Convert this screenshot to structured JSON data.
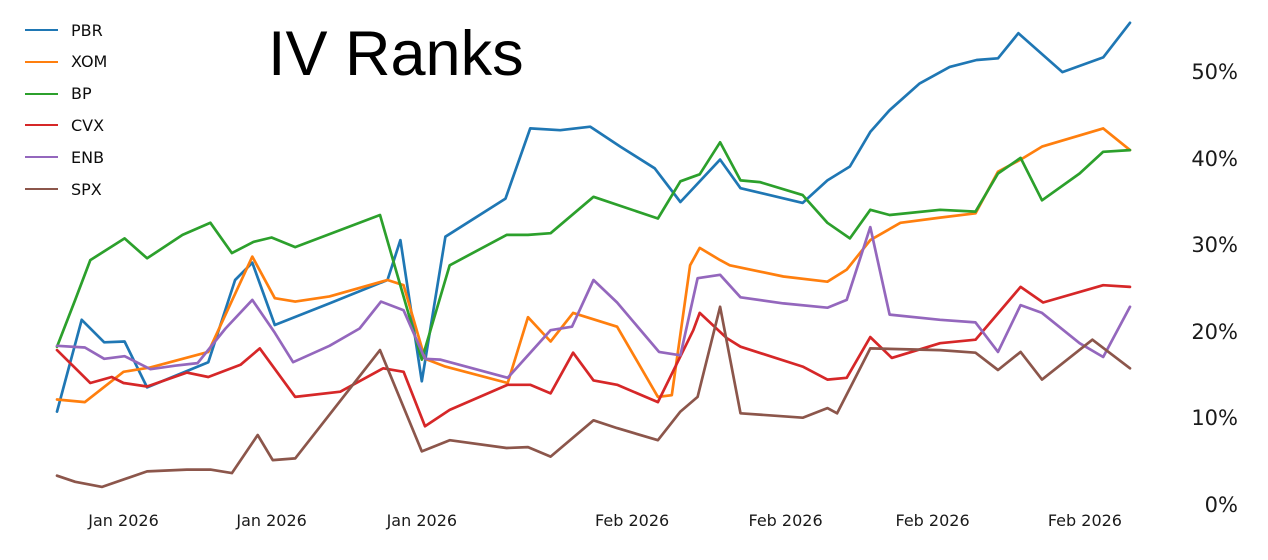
{
  "title": "IV Ranks",
  "text_color": "#1a1a1a",
  "background_color": "#ffffff",
  "chart_data": {
    "type": "line",
    "title": "IV Ranks",
    "grid": false,
    "legend_position": "top-left",
    "y_axis": {
      "side": "right",
      "unit": "%",
      "range": [
        0,
        57
      ],
      "ticks": [
        {
          "value": 0,
          "label": "0%"
        },
        {
          "value": 10,
          "label": "10%"
        },
        {
          "value": 20,
          "label": "20%"
        },
        {
          "value": 30,
          "label": "30%"
        },
        {
          "value": 40,
          "label": "40%"
        },
        {
          "value": 50,
          "label": "50%"
        }
      ]
    },
    "x_axis": {
      "kind": "date",
      "tick_labels": [
        {
          "label": "Jan 2026",
          "x_pct": 6.2
        },
        {
          "label": "Jan 2026",
          "x_pct": 20.0
        },
        {
          "label": "Jan 2026",
          "x_pct": 34.0
        },
        {
          "label": "Feb 2026",
          "x_pct": 53.6
        },
        {
          "label": "Feb 2026",
          "x_pct": 67.9
        },
        {
          "label": "Feb 2026",
          "x_pct": 81.6
        },
        {
          "label": "Feb 2026",
          "x_pct": 95.8
        }
      ]
    },
    "series": [
      {
        "name": "PBR",
        "color": "#1f77b4",
        "points": [
          [
            0,
            10.9
          ],
          [
            2.3,
            21.5
          ],
          [
            4.4,
            18.9
          ],
          [
            6.3,
            19.0
          ],
          [
            8.4,
            13.7
          ],
          [
            14.1,
            16.6
          ],
          [
            16.6,
            26.1
          ],
          [
            18.2,
            28.1
          ],
          [
            20.3,
            20.9
          ],
          [
            25.4,
            23.4
          ],
          [
            30.8,
            26.1
          ],
          [
            32.0,
            30.7
          ],
          [
            34.0,
            14.4
          ],
          [
            36.2,
            31.1
          ],
          [
            41.8,
            35.5
          ],
          [
            44.1,
            43.6
          ],
          [
            46.9,
            43.4
          ],
          [
            49.7,
            43.8
          ],
          [
            52.5,
            41.5
          ],
          [
            55.7,
            39.0
          ],
          [
            58.1,
            35.1
          ],
          [
            61.8,
            40.0
          ],
          [
            63.7,
            36.7
          ],
          [
            69.5,
            35.0
          ],
          [
            71.8,
            37.6
          ],
          [
            73.9,
            39.2
          ],
          [
            75.8,
            43.2
          ],
          [
            77.6,
            45.7
          ],
          [
            80.4,
            48.8
          ],
          [
            83.2,
            50.7
          ],
          [
            85.7,
            51.5
          ],
          [
            87.7,
            51.7
          ],
          [
            89.6,
            54.6
          ],
          [
            93.7,
            50.1
          ],
          [
            97.5,
            51.8
          ],
          [
            100,
            55.8
          ]
        ]
      },
      {
        "name": "XOM",
        "color": "#ff7f0e",
        "points": [
          [
            0,
            12.3
          ],
          [
            2.6,
            12.0
          ],
          [
            6.2,
            15.5
          ],
          [
            8.7,
            16.0
          ],
          [
            14.1,
            17.8
          ],
          [
            18.2,
            28.8
          ],
          [
            20.3,
            24.0
          ],
          [
            22.2,
            23.6
          ],
          [
            25.4,
            24.2
          ],
          [
            30.8,
            26.1
          ],
          [
            32.3,
            25.5
          ],
          [
            34.3,
            17.0
          ],
          [
            36.2,
            16.1
          ],
          [
            42.0,
            14.2
          ],
          [
            43.9,
            21.8
          ],
          [
            46.0,
            19.0
          ],
          [
            48.1,
            22.3
          ],
          [
            52.2,
            20.7
          ],
          [
            56.0,
            12.6
          ],
          [
            57.3,
            12.8
          ],
          [
            59.0,
            27.8
          ],
          [
            59.9,
            29.8
          ],
          [
            61.8,
            28.4
          ],
          [
            62.7,
            27.8
          ],
          [
            67.7,
            26.5
          ],
          [
            71.8,
            25.9
          ],
          [
            73.6,
            27.3
          ],
          [
            75.8,
            30.7
          ],
          [
            78.6,
            32.7
          ],
          [
            82.3,
            33.3
          ],
          [
            85.6,
            33.8
          ],
          [
            87.7,
            38.6
          ],
          [
            89.8,
            40.0
          ],
          [
            91.8,
            41.5
          ],
          [
            95.3,
            42.8
          ],
          [
            97.5,
            43.6
          ],
          [
            100,
            41.1
          ]
        ]
      },
      {
        "name": "BP",
        "color": "#2ca02c",
        "points": [
          [
            0,
            18.4
          ],
          [
            1.7,
            23.8
          ],
          [
            3.1,
            28.4
          ],
          [
            6.3,
            30.9
          ],
          [
            8.4,
            28.6
          ],
          [
            11.7,
            31.3
          ],
          [
            14.3,
            32.7
          ],
          [
            16.3,
            29.2
          ],
          [
            18.3,
            30.5
          ],
          [
            20.0,
            31.0
          ],
          [
            22.2,
            29.9
          ],
          [
            30.1,
            33.6
          ],
          [
            34.0,
            16.9
          ],
          [
            36.6,
            27.8
          ],
          [
            41.9,
            31.3
          ],
          [
            43.9,
            31.3
          ],
          [
            46.0,
            31.5
          ],
          [
            50.0,
            35.7
          ],
          [
            56.0,
            33.2
          ],
          [
            58.1,
            37.5
          ],
          [
            59.9,
            38.3
          ],
          [
            61.8,
            42.0
          ],
          [
            63.7,
            37.6
          ],
          [
            65.5,
            37.4
          ],
          [
            69.5,
            35.9
          ],
          [
            71.8,
            32.7
          ],
          [
            73.9,
            30.9
          ],
          [
            75.8,
            34.2
          ],
          [
            77.6,
            33.6
          ],
          [
            82.3,
            34.2
          ],
          [
            85.6,
            34.0
          ],
          [
            87.7,
            38.4
          ],
          [
            89.8,
            40.2
          ],
          [
            91.8,
            35.3
          ],
          [
            95.3,
            38.4
          ],
          [
            97.5,
            40.9
          ],
          [
            100,
            41.1
          ]
        ]
      },
      {
        "name": "CVX",
        "color": "#d62728",
        "points": [
          [
            0,
            18.0
          ],
          [
            3.1,
            14.2
          ],
          [
            5.1,
            14.9
          ],
          [
            6.2,
            14.2
          ],
          [
            8.4,
            13.8
          ],
          [
            12.1,
            15.4
          ],
          [
            14.1,
            14.9
          ],
          [
            17.1,
            16.3
          ],
          [
            18.9,
            18.2
          ],
          [
            22.2,
            12.6
          ],
          [
            26.4,
            13.2
          ],
          [
            30.4,
            15.9
          ],
          [
            32.3,
            15.5
          ],
          [
            34.3,
            9.2
          ],
          [
            36.6,
            11.1
          ],
          [
            42.0,
            14.0
          ],
          [
            44.1,
            14.0
          ],
          [
            46.0,
            13.0
          ],
          [
            48.1,
            17.7
          ],
          [
            50.0,
            14.5
          ],
          [
            52.2,
            14.0
          ],
          [
            56.0,
            12.0
          ],
          [
            59.3,
            20.3
          ],
          [
            59.9,
            22.3
          ],
          [
            62.4,
            19.4
          ],
          [
            63.7,
            18.4
          ],
          [
            69.5,
            16.1
          ],
          [
            71.8,
            14.6
          ],
          [
            73.6,
            14.8
          ],
          [
            75.8,
            19.5
          ],
          [
            77.8,
            17.1
          ],
          [
            82.3,
            18.8
          ],
          [
            85.6,
            19.2
          ],
          [
            89.8,
            25.3
          ],
          [
            91.9,
            23.5
          ],
          [
            97.5,
            25.5
          ],
          [
            100,
            25.3
          ]
        ]
      },
      {
        "name": "ENB",
        "color": "#9467bd",
        "points": [
          [
            0,
            18.5
          ],
          [
            2.6,
            18.3
          ],
          [
            4.4,
            17.0
          ],
          [
            6.3,
            17.3
          ],
          [
            8.7,
            15.8
          ],
          [
            11.0,
            16.2
          ],
          [
            13.1,
            16.5
          ],
          [
            15.7,
            20.5
          ],
          [
            18.2,
            23.8
          ],
          [
            20.3,
            20.0
          ],
          [
            22.0,
            16.6
          ],
          [
            25.4,
            18.5
          ],
          [
            28.2,
            20.5
          ],
          [
            30.2,
            23.6
          ],
          [
            32.3,
            22.6
          ],
          [
            34.3,
            17.0
          ],
          [
            35.7,
            16.9
          ],
          [
            42.0,
            14.8
          ],
          [
            46.0,
            20.3
          ],
          [
            48.0,
            20.7
          ],
          [
            50.0,
            26.1
          ],
          [
            52.2,
            23.5
          ],
          [
            56.1,
            17.8
          ],
          [
            58.1,
            17.4
          ],
          [
            59.7,
            26.3
          ],
          [
            61.8,
            26.7
          ],
          [
            63.7,
            24.1
          ],
          [
            67.7,
            23.4
          ],
          [
            71.8,
            22.9
          ],
          [
            73.6,
            23.8
          ],
          [
            75.8,
            32.2
          ],
          [
            77.6,
            22.1
          ],
          [
            82.3,
            21.5
          ],
          [
            85.6,
            21.2
          ],
          [
            87.7,
            17.8
          ],
          [
            89.8,
            23.2
          ],
          [
            91.8,
            22.3
          ],
          [
            95.3,
            18.8
          ],
          [
            97.5,
            17.2
          ],
          [
            100,
            23.0
          ]
        ]
      },
      {
        "name": "SPX",
        "color": "#8c564b",
        "points": [
          [
            0,
            3.5
          ],
          [
            1.7,
            2.8
          ],
          [
            4.2,
            2.2
          ],
          [
            8.4,
            4.0
          ],
          [
            12.1,
            4.2
          ],
          [
            14.3,
            4.2
          ],
          [
            16.3,
            3.8
          ],
          [
            18.7,
            8.2
          ],
          [
            20.1,
            5.3
          ],
          [
            22.2,
            5.5
          ],
          [
            30.1,
            18.0
          ],
          [
            34.0,
            6.3
          ],
          [
            36.6,
            7.6
          ],
          [
            41.9,
            6.7
          ],
          [
            43.9,
            6.8
          ],
          [
            46.0,
            5.7
          ],
          [
            50.0,
            9.9
          ],
          [
            52.2,
            9.0
          ],
          [
            56.0,
            7.6
          ],
          [
            58.1,
            10.9
          ],
          [
            59.7,
            12.6
          ],
          [
            61.8,
            23.0
          ],
          [
            63.7,
            10.7
          ],
          [
            69.5,
            10.2
          ],
          [
            71.8,
            11.3
          ],
          [
            72.7,
            10.7
          ],
          [
            75.8,
            18.2
          ],
          [
            82.3,
            18.0
          ],
          [
            85.6,
            17.7
          ],
          [
            87.7,
            15.7
          ],
          [
            89.8,
            17.8
          ],
          [
            91.8,
            14.6
          ],
          [
            96.5,
            19.2
          ],
          [
            100,
            15.9
          ]
        ]
      }
    ]
  }
}
